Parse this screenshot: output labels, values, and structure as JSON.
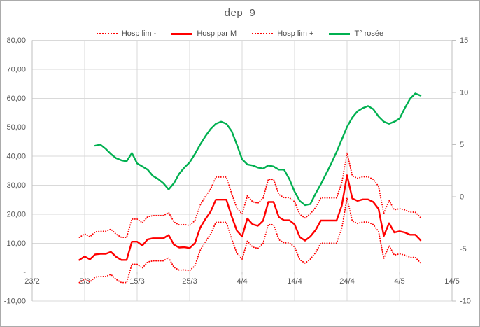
{
  "window": {
    "background": "#FFFFFF",
    "border_color": "#ABABAB"
  },
  "chart": {
    "colors": {
      "red": "#FF0000",
      "green": "#00B050",
      "gridline": "#D9D9D9",
      "axis_line": "#BFBFBF",
      "tick_label": "#595959",
      "title": "#595959"
    }
  },
  "chart_data": {
    "type": "line",
    "title": "dep  9",
    "grid": true,
    "legend_position": "top",
    "x_axis": {
      "tick_labels": [
        "23/2",
        "5/3",
        "15/3",
        "25/3",
        "4/4",
        "14/4",
        "24/4",
        "4/5",
        "14/5"
      ],
      "tick_day_offsets": [
        0,
        10,
        20,
        30,
        40,
        50,
        60,
        70,
        80
      ],
      "range_days": [
        0,
        80
      ]
    },
    "y_axis_left": {
      "tick_labels": [
        "80,00",
        "70,00",
        "60,00",
        "50,00",
        "40,00",
        "30,00",
        "20,00",
        "10,00",
        "-",
        "-10,00"
      ],
      "tick_values": [
        80,
        70,
        60,
        50,
        40,
        30,
        20,
        10,
        0,
        -10
      ],
      "range": [
        -10,
        80
      ]
    },
    "y_axis_right": {
      "tick_labels": [
        "15",
        "10",
        "5",
        "0",
        "-5",
        "-10"
      ],
      "tick_values": [
        15,
        10,
        5,
        0,
        -5,
        -10
      ],
      "range": [
        -10,
        15
      ]
    },
    "series": [
      {
        "name": "Hosp lim -",
        "axis": "left",
        "style": "dotted",
        "color": "#FF0000",
        "start_date": "4/3",
        "start_day_offset": 9,
        "point_interval_days": 1,
        "values": [
          -3.6,
          -2.4,
          -3.4,
          -1.7,
          -1.5,
          -1.5,
          -0.8,
          -2.5,
          -3.6,
          -3.6,
          2.7,
          2.7,
          1.4,
          3.5,
          3.9,
          3.9,
          3.9,
          5.0,
          1.7,
          0.7,
          0.8,
          0.5,
          2.2,
          7.5,
          10.5,
          13.1,
          17.2,
          17.2,
          17.2,
          11.5,
          6.5,
          4.5,
          10.7,
          8.7,
          8.2,
          9.9,
          16.4,
          16.4,
          11.2,
          10.1,
          10.1,
          8.7,
          4.3,
          3.1,
          4.5,
          6.7,
          10.0,
          10.0,
          10.0,
          10.0,
          15.2,
          25.6,
          17.6,
          16.8,
          17.3,
          17.3,
          16.4,
          14.0,
          4.7,
          9.1,
          5.9,
          6.3,
          5.9,
          5.1,
          5.1,
          3.2
        ]
      },
      {
        "name": "Hosp par M",
        "axis": "left",
        "style": "solid",
        "color": "#FF0000",
        "start_date": "4/3",
        "start_day_offset": 9,
        "point_interval_days": 1,
        "values": [
          4.2,
          5.4,
          4.4,
          6.1,
          6.3,
          6.3,
          7.0,
          5.3,
          4.2,
          4.2,
          10.5,
          10.5,
          9.2,
          11.3,
          11.7,
          11.7,
          11.7,
          12.8,
          9.5,
          8.5,
          8.6,
          8.3,
          10.0,
          15.3,
          18.3,
          20.9,
          25.0,
          25.0,
          25.0,
          19.3,
          14.3,
          12.3,
          18.5,
          16.5,
          16.0,
          17.7,
          24.2,
          24.2,
          19.0,
          17.9,
          17.9,
          16.5,
          12.1,
          10.9,
          12.3,
          14.5,
          17.8,
          17.8,
          17.8,
          17.8,
          23.0,
          33.4,
          25.4,
          24.6,
          25.1,
          25.1,
          24.2,
          21.8,
          12.5,
          16.9,
          13.7,
          14.1,
          13.7,
          12.9,
          12.9,
          11.0
        ]
      },
      {
        "name": "Hosp lim +",
        "axis": "left",
        "style": "dotted",
        "color": "#FF0000",
        "start_date": "4/3",
        "start_day_offset": 9,
        "point_interval_days": 1,
        "values": [
          12.0,
          13.2,
          12.2,
          13.9,
          14.1,
          14.1,
          14.8,
          13.1,
          12.0,
          12.0,
          18.3,
          18.3,
          17.0,
          19.1,
          19.5,
          19.5,
          19.5,
          20.6,
          17.3,
          16.3,
          16.4,
          16.1,
          17.8,
          23.1,
          26.1,
          28.7,
          32.8,
          32.8,
          32.8,
          27.1,
          22.1,
          20.1,
          26.3,
          24.3,
          23.8,
          25.5,
          32.0,
          32.0,
          26.8,
          25.7,
          25.7,
          24.3,
          19.9,
          18.7,
          20.1,
          22.3,
          25.6,
          25.6,
          25.6,
          25.6,
          30.8,
          41.2,
          33.2,
          32.4,
          32.9,
          32.9,
          32.0,
          29.6,
          20.3,
          24.7,
          21.5,
          21.9,
          21.5,
          20.7,
          20.7,
          18.8
        ]
      },
      {
        "name": "T° rosée",
        "axis": "right",
        "style": "solid",
        "color": "#00B050",
        "start_date": "7/3",
        "start_day_offset": 12,
        "point_interval_days": 1,
        "values": [
          4.9,
          5.0,
          4.6,
          4.1,
          3.7,
          3.5,
          3.4,
          4.2,
          3.2,
          2.9,
          2.6,
          2.0,
          1.7,
          1.3,
          0.7,
          1.3,
          2.2,
          2.8,
          3.3,
          4.1,
          5.0,
          5.8,
          6.5,
          7.0,
          7.2,
          7.0,
          6.3,
          5.0,
          3.6,
          3.1,
          3.0,
          2.8,
          2.7,
          3.0,
          2.9,
          2.6,
          2.6,
          1.7,
          0.5,
          -0.4,
          -0.8,
          -0.7,
          0.3,
          1.2,
          2.2,
          3.2,
          4.3,
          5.5,
          6.7,
          7.6,
          8.2,
          8.5,
          8.7,
          8.4,
          7.7,
          7.2,
          7.0,
          7.2,
          7.5,
          8.5,
          9.4,
          9.9,
          9.7
        ]
      }
    ]
  }
}
